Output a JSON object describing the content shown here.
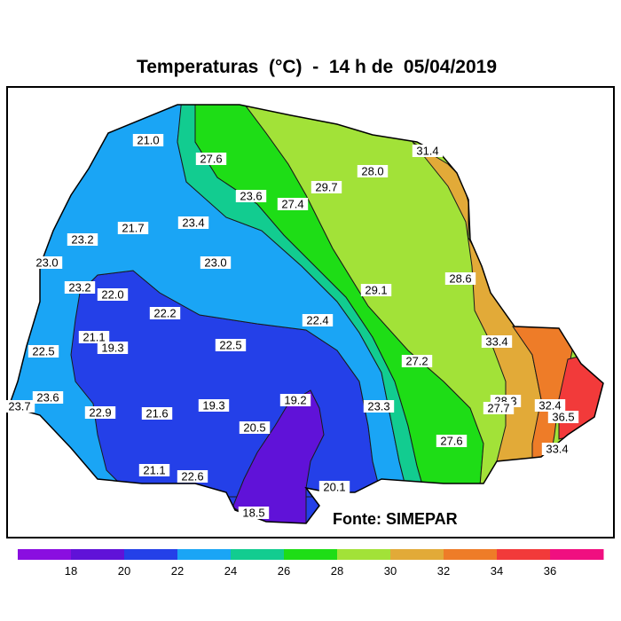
{
  "title": "Temperaturas  (°C)  -  14 h de  05/04/2019",
  "source": "Fonte: SIMEPAR",
  "stations": [
    {
      "label": "21.0"
    },
    {
      "label": "27.6"
    },
    {
      "label": "31.4"
    },
    {
      "label": "28.0"
    },
    {
      "label": "29.7"
    },
    {
      "label": "23.6"
    },
    {
      "label": "27.4"
    },
    {
      "label": "23.4"
    },
    {
      "label": "21.7"
    },
    {
      "label": "23.2"
    },
    {
      "label": "23.0"
    },
    {
      "label": "23.0"
    },
    {
      "label": "23.2"
    },
    {
      "label": "22.0"
    },
    {
      "label": "29.1"
    },
    {
      "label": "28.6"
    },
    {
      "label": "22.2"
    },
    {
      "label": "22.4"
    },
    {
      "label": "21.1"
    },
    {
      "label": "19.3"
    },
    {
      "label": "22.5"
    },
    {
      "label": "22.5"
    },
    {
      "label": "33.4"
    },
    {
      "label": "27.2"
    },
    {
      "label": "23.6"
    },
    {
      "label": "23.7"
    },
    {
      "label": "22.9"
    },
    {
      "label": "21.6"
    },
    {
      "label": "19.3"
    },
    {
      "label": "19.2"
    },
    {
      "label": "23.3"
    },
    {
      "label": "28.3"
    },
    {
      "label": "27.7"
    },
    {
      "label": "32.4"
    },
    {
      "label": "36.5"
    },
    {
      "label": "20.5"
    },
    {
      "label": "27.6"
    },
    {
      "label": "33.4"
    },
    {
      "label": "21.1"
    },
    {
      "label": "22.6"
    },
    {
      "label": "20.1"
    },
    {
      "label": "18.5"
    }
  ],
  "colors": {
    "zone_18": "#8a0ee0",
    "zone_20": "#6012d8",
    "zone_22": "#2440e8",
    "zone_24": "#1aa5f5",
    "zone_26": "#12cc90",
    "zone_28": "#1edd16",
    "zone_30": "#a2e238",
    "zone_32": "#e2aa38",
    "zone_34": "#ee7c28",
    "zone_36": "#f23a3a",
    "zone_38": "#f00f80"
  },
  "legend": {
    "ticks": [
      "18",
      "20",
      "22",
      "24",
      "26",
      "28",
      "30",
      "32",
      "34",
      "36"
    ],
    "colors": [
      "#8a0ee0",
      "#6012d8",
      "#2440e8",
      "#1aa5f5",
      "#12cc90",
      "#1edd16",
      "#a2e238",
      "#e2aa38",
      "#ee7c28",
      "#f23a3a",
      "#f00f80"
    ]
  }
}
